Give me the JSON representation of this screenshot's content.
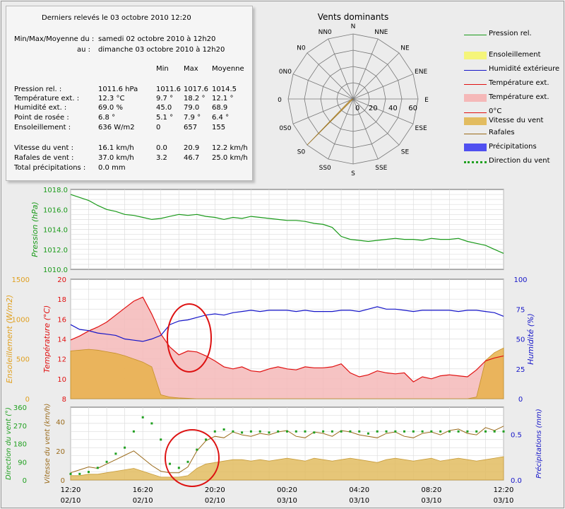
{
  "summary": {
    "title": "Derniers relevés le 03 octobre 2010 12:20",
    "range_label_1": "Min/Max/Moyenne du :",
    "range_value_1": "samedi 02 octobre 2010 à 12h20",
    "range_label_2": "au :",
    "range_value_2": "dimanche 03 octobre 2010 à 12h20",
    "col_min": "Min",
    "col_max": "Max",
    "col_avg": "Moyenne",
    "rows": [
      {
        "label": "Pression rel. :",
        "current": "1011.6 hPa",
        "min": "1011.6",
        "max": "1017.6",
        "avg": "1014.5"
      },
      {
        "label": "Température ext. :",
        "current": "12.3 °C",
        "min": "9.7 °",
        "max": "18.2 °",
        "avg": "12.1 °"
      },
      {
        "label": "Humidité ext. :",
        "current": "69.0 %",
        "min": "45.0",
        "max": "79.0",
        "avg": "68.9"
      },
      {
        "label": "Point de rosée :",
        "current": "6.8 °",
        "min": "5.1 °",
        "max": "7.9 °",
        "avg": "6.4 °"
      },
      {
        "label": "Ensoleillement :",
        "current": "636 W/m2",
        "min": "0",
        "max": "657",
        "avg": "155"
      },
      {
        "label": "Vitesse du vent :",
        "current": "16.1 km/h",
        "min": "0.0",
        "max": "20.9",
        "avg": "12.2 km/h"
      },
      {
        "label": "Rafales de vent :",
        "current": "37.0 km/h",
        "min": "3.2",
        "max": "46.7",
        "avg": "25.0 km/h"
      },
      {
        "label": "Total précipitations :",
        "current": "0.0 mm",
        "min": "",
        "max": "",
        "avg": ""
      }
    ]
  },
  "legend": [
    {
      "label": "Pression rel.",
      "color": "#1a9a1a",
      "kind": "line"
    },
    {
      "label": "Ensoleillement",
      "color": "#f5f57a",
      "kind": "fill"
    },
    {
      "label": "Humidité extérieure",
      "color": "#1515c8",
      "kind": "line"
    },
    {
      "label": "Température ext.",
      "color": "#e01010",
      "kind": "line"
    },
    {
      "label": "Température ext.",
      "color": "#f5b8b8",
      "kind": "fill"
    },
    {
      "label": "0°C",
      "color": "#e01010",
      "kind": "line"
    },
    {
      "label": "Vitesse du vent",
      "color": "#e2bc60",
      "kind": "fill"
    },
    {
      "label": "Rafales",
      "color": "#9a6a1a",
      "kind": "line"
    },
    {
      "label": "Précipitations",
      "color": "#5050f0",
      "kind": "fill"
    },
    {
      "label": "Direction du vent",
      "color": "#20a020",
      "kind": "dots"
    }
  ],
  "chart_data": [
    {
      "type": "radar",
      "title": "Vents dominants",
      "directions": [
        "N",
        "NNE",
        "NE",
        "ENE",
        "E",
        "ESE",
        "SE",
        "SSE",
        "S",
        "SS0",
        "S0",
        "0S0",
        "0",
        "0N0",
        "N0",
        "NN0"
      ],
      "rings": [
        20,
        40,
        60
      ],
      "ring_labels": [
        "20",
        "40",
        "60"
      ],
      "center_label": "0",
      "values": [
        0,
        0,
        0,
        0,
        0,
        0,
        0,
        0,
        0,
        0,
        60,
        3,
        0,
        0,
        0,
        0
      ],
      "fill_color": "#d4a64a"
    },
    {
      "type": "line",
      "series_name": "Pression rel.",
      "ylabel": "Pression (hPa)",
      "ylim": [
        1010,
        1018
      ],
      "yticks": [
        "1010.0",
        "1012.0",
        "1014.0",
        "1016.0",
        "1018.0"
      ],
      "x_hours": [
        0,
        0.5,
        1,
        1.5,
        2,
        2.5,
        3,
        3.5,
        4,
        4.5,
        5,
        5.5,
        6,
        6.5,
        7,
        7.5,
        8,
        8.5,
        9,
        9.5,
        10,
        10.5,
        11,
        11.5,
        12,
        12.5,
        13,
        13.5,
        14,
        14.5,
        15,
        15.5,
        16,
        16.5,
        17,
        17.5,
        18,
        18.5,
        19,
        19.5,
        20,
        20.5,
        21,
        21.5,
        22,
        22.5,
        23,
        23.5,
        24
      ],
      "values": [
        1017.5,
        1017.2,
        1016.9,
        1016.4,
        1016.0,
        1015.8,
        1015.5,
        1015.4,
        1015.2,
        1015.0,
        1015.1,
        1015.3,
        1015.5,
        1015.4,
        1015.5,
        1015.3,
        1015.2,
        1015.0,
        1015.2,
        1015.1,
        1015.3,
        1015.2,
        1015.1,
        1015.0,
        1014.9,
        1014.9,
        1014.8,
        1014.6,
        1014.5,
        1014.2,
        1013.3,
        1013.0,
        1012.9,
        1012.8,
        1012.9,
        1013.0,
        1013.1,
        1013.0,
        1013.0,
        1012.9,
        1013.1,
        1013.0,
        1013.0,
        1013.1,
        1012.8,
        1012.6,
        1012.4,
        1012.0,
        1011.6
      ]
    },
    {
      "type": "line",
      "series": [
        "Température ext.",
        "Humidité extérieure",
        "Ensoleillement"
      ],
      "ylabel_left": "Température (°C)",
      "ylabel_far_left": "Ensoleillement (W/m2)",
      "ylabel_right": "Humidité (%)",
      "ylim_temp": [
        8,
        20
      ],
      "ylim_solar": [
        0,
        1500
      ],
      "ylim_hum": [
        0,
        100
      ],
      "yticks_temp": [
        "8",
        "10",
        "12",
        "14",
        "16",
        "18",
        "20"
      ],
      "yticks_solar": [
        "0",
        "500",
        "1000",
        "1500"
      ],
      "yticks_hum": [
        "0",
        "25",
        "50",
        "75",
        "100"
      ],
      "x_hours": [
        0,
        0.5,
        1,
        1.5,
        2,
        2.5,
        3,
        3.5,
        4,
        4.5,
        5,
        5.5,
        6,
        6.5,
        7,
        7.5,
        8,
        8.5,
        9,
        9.5,
        10,
        10.5,
        11,
        11.5,
        12,
        12.5,
        13,
        13.5,
        14,
        14.5,
        15,
        15.5,
        16,
        16.5,
        17,
        17.5,
        18,
        18.5,
        19,
        19.5,
        20,
        20.5,
        21,
        21.5,
        22,
        22.5,
        23,
        23.5,
        24
      ],
      "temperature": [
        13.9,
        14.3,
        14.8,
        15.2,
        15.7,
        16.4,
        17.1,
        17.8,
        18.2,
        16.5,
        14.5,
        13.2,
        12.4,
        12.8,
        12.7,
        12.3,
        11.8,
        11.2,
        11.0,
        11.2,
        10.8,
        10.7,
        11.0,
        11.2,
        11.0,
        10.9,
        11.2,
        11.1,
        11.1,
        11.2,
        11.5,
        10.6,
        10.2,
        10.4,
        10.8,
        10.6,
        10.5,
        10.6,
        9.7,
        10.2,
        10.0,
        10.3,
        10.4,
        10.3,
        10.2,
        10.9,
        11.8,
        12.1,
        12.3
      ],
      "humidity": [
        62,
        58,
        57,
        55,
        54,
        53,
        50,
        49,
        48,
        50,
        53,
        62,
        65,
        66,
        68,
        70,
        71,
        70,
        72,
        73,
        74,
        73,
        74,
        74,
        74,
        73,
        74,
        73,
        73,
        73,
        74,
        74,
        73,
        75,
        77,
        75,
        75,
        74,
        73,
        74,
        74,
        74,
        74,
        73,
        74,
        74,
        73,
        72,
        69
      ],
      "solar": [
        600,
        610,
        620,
        610,
        590,
        570,
        540,
        500,
        460,
        400,
        50,
        20,
        10,
        5,
        0,
        0,
        0,
        0,
        0,
        0,
        0,
        0,
        0,
        0,
        0,
        0,
        0,
        0,
        0,
        0,
        0,
        0,
        0,
        0,
        0,
        0,
        0,
        0,
        0,
        0,
        0,
        0,
        0,
        0,
        0,
        20,
        480,
        580,
        636
      ]
    },
    {
      "type": "line",
      "series": [
        "Vitesse du vent",
        "Rafales",
        "Direction du vent",
        "Précipitations"
      ],
      "ylabel_dir": "Direction du vent (°)",
      "ylabel_speed": "Vitesse du vent (km/h)",
      "ylabel_rain": "Précipitations (mm)",
      "ylim_dir": [
        0,
        360
      ],
      "ylim_speed": [
        0,
        50
      ],
      "ylim_rain": [
        0,
        0.8
      ],
      "yticks_dir": [
        "0",
        "90",
        "180",
        "270",
        "360"
      ],
      "yticks_speed": [
        "0",
        "20",
        "40"
      ],
      "yticks_rain": [
        "0.0",
        "0.5"
      ],
      "x_hours": [
        0,
        0.5,
        1,
        1.5,
        2,
        2.5,
        3,
        3.5,
        4,
        4.5,
        5,
        5.5,
        6,
        6.5,
        7,
        7.5,
        8,
        8.5,
        9,
        9.5,
        10,
        10.5,
        11,
        11.5,
        12,
        12.5,
        13,
        13.5,
        14,
        14.5,
        15,
        15.5,
        16,
        16.5,
        17,
        17.5,
        18,
        18.5,
        19,
        19.5,
        20,
        20.5,
        21,
        21.5,
        22,
        22.5,
        23,
        23.5,
        24
      ],
      "speed": [
        3,
        3,
        4,
        4,
        5,
        6,
        7,
        8,
        6,
        4,
        2,
        2,
        2,
        3,
        8,
        11,
        12,
        13,
        14,
        14,
        13,
        14,
        13,
        14,
        15,
        14,
        13,
        15,
        14,
        13,
        14,
        15,
        14,
        13,
        12,
        14,
        15,
        14,
        13,
        14,
        15,
        13,
        14,
        15,
        14,
        13,
        14,
        15,
        16
      ],
      "gust": [
        5,
        7,
        9,
        8,
        11,
        14,
        17,
        20,
        15,
        10,
        6,
        5,
        5,
        9,
        20,
        27,
        30,
        29,
        33,
        31,
        30,
        32,
        31,
        33,
        34,
        30,
        29,
        33,
        32,
        30,
        34,
        33,
        31,
        30,
        29,
        32,
        33,
        30,
        29,
        32,
        33,
        31,
        34,
        35,
        32,
        31,
        36,
        34,
        37
      ],
      "direction": [
        30,
        30,
        40,
        60,
        90,
        130,
        160,
        240,
        310,
        280,
        200,
        80,
        60,
        90,
        150,
        200,
        240,
        250,
        240,
        235,
        240,
        240,
        235,
        240,
        240,
        240,
        240,
        235,
        240,
        240,
        240,
        240,
        240,
        230,
        240,
        240,
        240,
        240,
        240,
        240,
        240,
        240,
        240,
        240,
        240,
        240,
        240,
        240,
        240
      ],
      "precip": [
        0,
        0,
        0,
        0,
        0,
        0,
        0,
        0,
        0,
        0,
        0,
        0,
        0,
        0,
        0,
        0,
        0,
        0,
        0,
        0,
        0,
        0,
        0,
        0,
        0,
        0,
        0,
        0,
        0,
        0,
        0,
        0,
        0,
        0,
        0,
        0,
        0,
        0,
        0,
        0,
        0,
        0,
        0,
        0,
        0,
        0,
        0,
        0,
        0
      ]
    }
  ],
  "x_axis": [
    {
      "time": "12:20",
      "date": "02/10"
    },
    {
      "time": "16:20",
      "date": "02/10"
    },
    {
      "time": "20:20",
      "date": "02/10"
    },
    {
      "time": "00:20",
      "date": "03/10"
    },
    {
      "time": "04:20",
      "date": "03/10"
    },
    {
      "time": "08:20",
      "date": "03/10"
    },
    {
      "time": "12:20",
      "date": "03/10"
    }
  ],
  "colors": {
    "annotation": "#dd1111"
  }
}
